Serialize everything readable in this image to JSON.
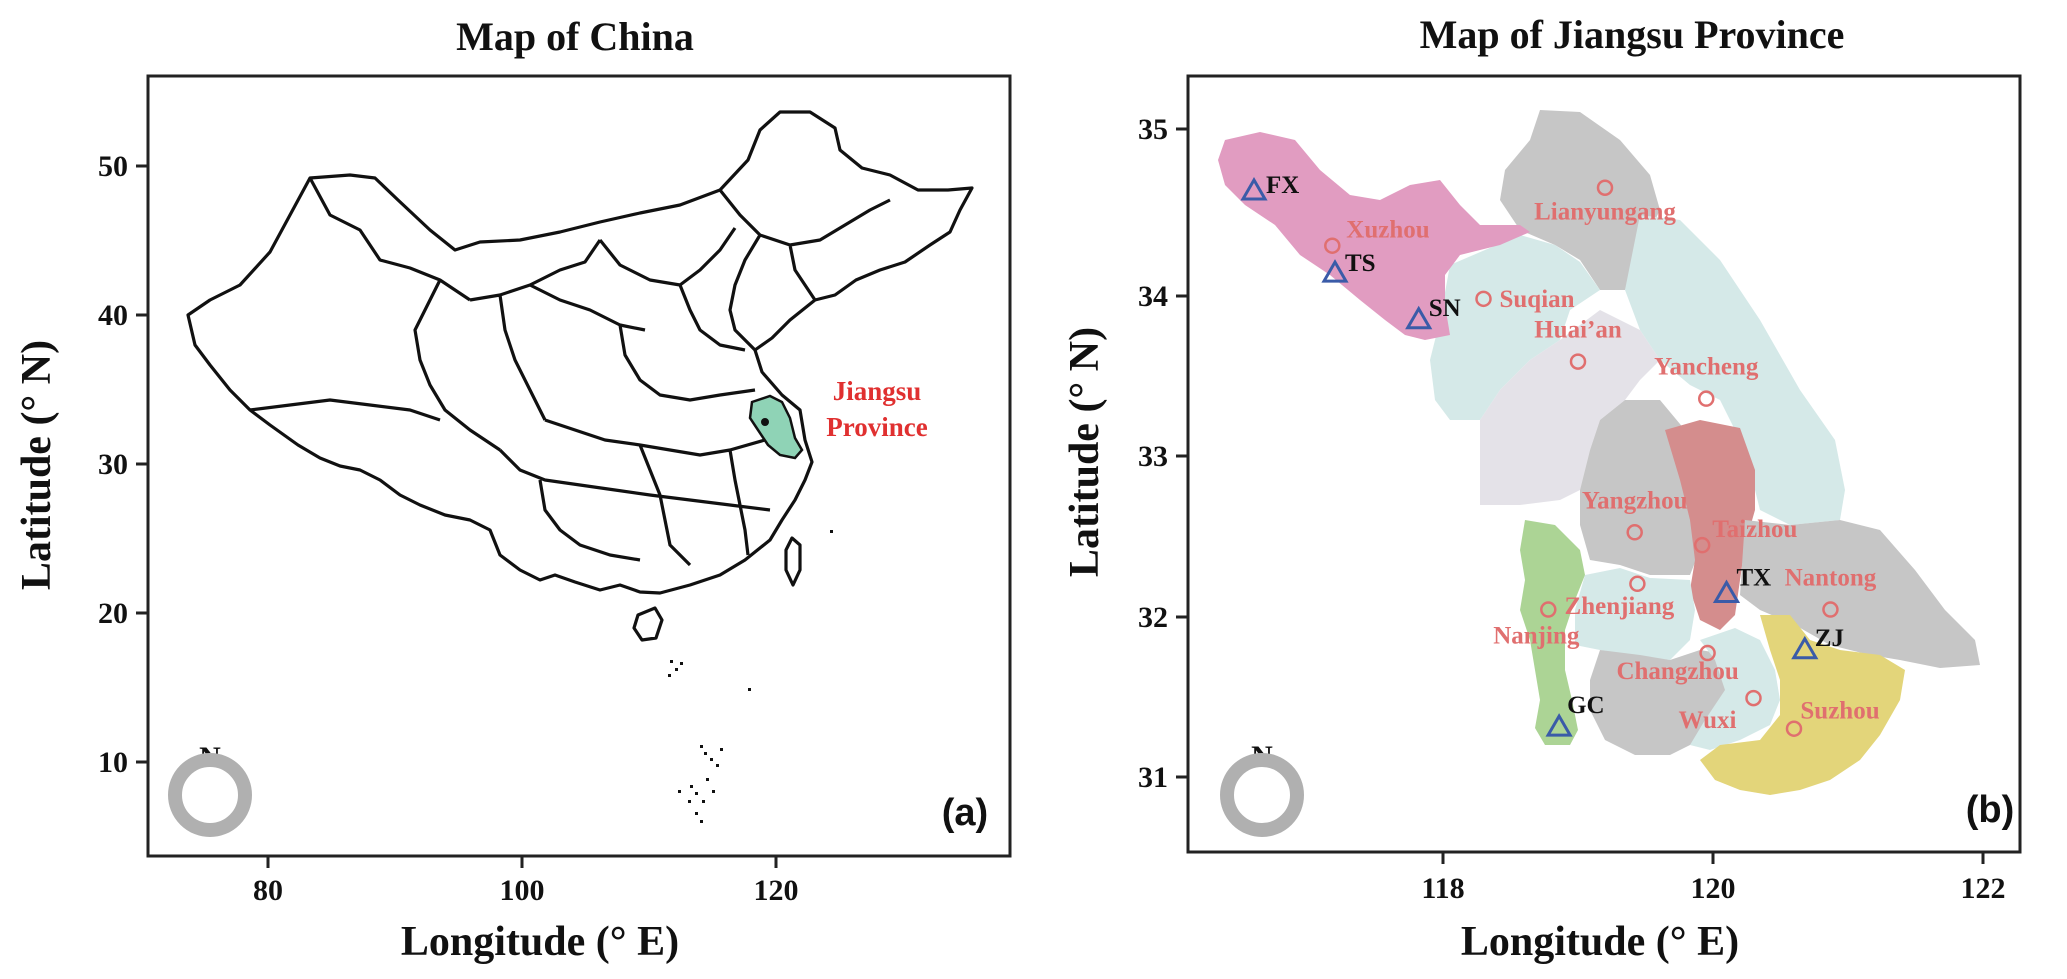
{
  "colors": {
    "city_label": "#e06f6f",
    "site_marker": "#3a5ba8",
    "jiangsu_highlight": "#8fd3b6",
    "jiangsu_label": "#e03030",
    "north_ring": "#b0b0b0"
  },
  "panel_a": {
    "title": "Map of China",
    "xlabel": "Longitude (° E)",
    "ylabel": "Latitude (° N)",
    "tag": "(a)",
    "north": "N",
    "highlight_label_line1": "Jiangsu",
    "highlight_label_line2": "Province",
    "x_ticks": [
      "80",
      "100",
      "120"
    ],
    "y_ticks": [
      "10",
      "20",
      "30",
      "40",
      "50"
    ]
  },
  "panel_b": {
    "title": "Map of Jiangsu Province",
    "xlabel": "Longitude (° E)",
    "ylabel": "Latitude (° N)",
    "tag": "(b)",
    "north": "N",
    "x_ticks": [
      "118",
      "120",
      "122"
    ],
    "y_ticks": [
      "31",
      "32",
      "33",
      "34",
      "35"
    ],
    "cities": [
      {
        "name": "Lianyungang",
        "lon": 119.2,
        "lat": 34.66
      },
      {
        "name": "Xuzhou",
        "lon": 117.18,
        "lat": 34.3
      },
      {
        "name": "Suqian",
        "lon": 118.3,
        "lat": 33.97
      },
      {
        "name": "Huai’an",
        "lon": 119.0,
        "lat": 33.58
      },
      {
        "name": "Yancheng",
        "lon": 119.95,
        "lat": 33.35
      },
      {
        "name": "Yangzhou",
        "lon": 119.42,
        "lat": 32.52
      },
      {
        "name": "Taizhou",
        "lon": 119.92,
        "lat": 32.44
      },
      {
        "name": "Nantong",
        "lon": 120.87,
        "lat": 32.04
      },
      {
        "name": "Nanjing",
        "lon": 118.78,
        "lat": 32.04
      },
      {
        "name": "Zhenjiang",
        "lon": 119.44,
        "lat": 32.2
      },
      {
        "name": "Changzhou",
        "lon": 119.96,
        "lat": 31.77
      },
      {
        "name": "Wuxi",
        "lon": 120.3,
        "lat": 31.49
      },
      {
        "name": "Suzhou",
        "lon": 120.6,
        "lat": 31.3
      }
    ],
    "sites": [
      {
        "code": "FX",
        "lon": 116.6,
        "lat": 34.64
      },
      {
        "code": "TS",
        "lon": 117.2,
        "lat": 34.13
      },
      {
        "code": "SN",
        "lon": 117.82,
        "lat": 33.84
      },
      {
        "code": "TX",
        "lon": 120.1,
        "lat": 32.14
      },
      {
        "code": "ZJ",
        "lon": 120.68,
        "lat": 31.79
      },
      {
        "code": "GC",
        "lon": 118.86,
        "lat": 31.31
      }
    ]
  }
}
